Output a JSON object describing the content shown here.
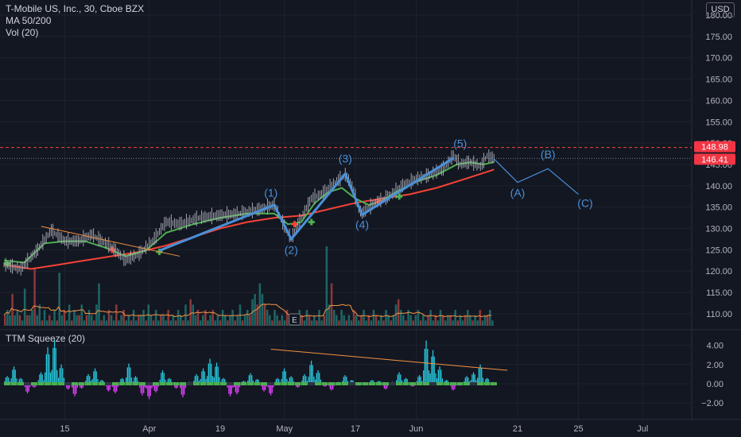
{
  "header": {
    "symbol_line": "T-Mobile US, Inc., 30, Cboe BZX",
    "ma_label": "MA 50/200",
    "vol_label": "Vol (20)",
    "currency": "USD"
  },
  "squeeze_pane": {
    "title": "TTM Squeeze (20)"
  },
  "colors": {
    "background": "#131722",
    "grid": "#1e222d",
    "price_bars": "#b2b5be",
    "ma50": "#4caf50",
    "ma200": "#f44336",
    "wave_line": "#4a90d9",
    "trendline": "#f59342",
    "squeeze_up": "#26c6da",
    "squeeze_down": "#e040fb",
    "volume_up": "#26a69a",
    "volume_down": "#ef5350",
    "price_badge": "#f23645"
  },
  "chart_data": [
    {
      "type": "line",
      "title": "T-Mobile US, Inc., 30, Cboe BZX",
      "x_ticks": [
        "15",
        "Apr",
        "19",
        "May",
        "17",
        "Jun",
        "21",
        "25",
        "Jul"
      ],
      "y_ticks": [
        "110.00",
        "115.00",
        "120.00",
        "125.00",
        "130.00",
        "135.00",
        "140.00",
        "145.00",
        "150.00",
        "155.00",
        "160.00",
        "165.00",
        "170.00",
        "175.00",
        "180.00"
      ],
      "ylim": [
        105.7,
        181.5
      ],
      "price_path": [
        {
          "x": 0.0,
          "y": 121.5
        },
        {
          "x": 2.5,
          "y": 120.5
        },
        {
          "x": 5.0,
          "y": 125.0
        },
        {
          "x": 7.0,
          "y": 129.5
        },
        {
          "x": 9.0,
          "y": 127.0
        },
        {
          "x": 11.0,
          "y": 127.0
        },
        {
          "x": 13.0,
          "y": 128.5
        },
        {
          "x": 16.0,
          "y": 125.5
        },
        {
          "x": 18.0,
          "y": 122.5
        },
        {
          "x": 20.0,
          "y": 124.0
        },
        {
          "x": 22.0,
          "y": 127.0
        },
        {
          "x": 24.0,
          "y": 131.5
        },
        {
          "x": 26.0,
          "y": 131.0
        },
        {
          "x": 29.0,
          "y": 132.5
        },
        {
          "x": 32.0,
          "y": 133.0
        },
        {
          "x": 35.0,
          "y": 133.5
        },
        {
          "x": 38.0,
          "y": 134.5
        },
        {
          "x": 40.0,
          "y": 135.5
        },
        {
          "x": 41.5,
          "y": 130.5
        },
        {
          "x": 42.5,
          "y": 127.5
        },
        {
          "x": 44.0,
          "y": 132.5
        },
        {
          "x": 45.5,
          "y": 137.0
        },
        {
          "x": 47.0,
          "y": 138.0
        },
        {
          "x": 48.5,
          "y": 140.0
        },
        {
          "x": 50.5,
          "y": 142.5
        },
        {
          "x": 51.5,
          "y": 140.0
        },
        {
          "x": 52.5,
          "y": 134.5
        },
        {
          "x": 53.0,
          "y": 133.5
        },
        {
          "x": 55.0,
          "y": 136.0
        },
        {
          "x": 57.0,
          "y": 137.5
        },
        {
          "x": 59.0,
          "y": 140.0
        },
        {
          "x": 61.0,
          "y": 141.5
        },
        {
          "x": 63.0,
          "y": 142.5
        },
        {
          "x": 65.0,
          "y": 144.0
        },
        {
          "x": 66.5,
          "y": 147.0
        },
        {
          "x": 67.5,
          "y": 145.0
        },
        {
          "x": 69.0,
          "y": 145.5
        },
        {
          "x": 70.5,
          "y": 144.5
        },
        {
          "x": 71.5,
          "y": 147.0
        },
        {
          "x": 72.5,
          "y": 146.4
        }
      ],
      "series": [
        {
          "name": "MA 50",
          "points": [
            {
              "x": 0.0,
              "y": 122.5
            },
            {
              "x": 3.0,
              "y": 122.0
            },
            {
              "x": 6.0,
              "y": 126.5
            },
            {
              "x": 9.0,
              "y": 127.0
            },
            {
              "x": 12.0,
              "y": 127.0
            },
            {
              "x": 15.0,
              "y": 125.5
            },
            {
              "x": 18.0,
              "y": 123.5
            },
            {
              "x": 21.0,
              "y": 124.8
            },
            {
              "x": 24.0,
              "y": 129.0
            },
            {
              "x": 28.0,
              "y": 131.0
            },
            {
              "x": 32.0,
              "y": 132.5
            },
            {
              "x": 36.0,
              "y": 133.5
            },
            {
              "x": 40.0,
              "y": 133.5
            },
            {
              "x": 42.0,
              "y": 131.0
            },
            {
              "x": 44.0,
              "y": 131.5
            },
            {
              "x": 46.0,
              "y": 136.0
            },
            {
              "x": 48.0,
              "y": 138.5
            },
            {
              "x": 50.0,
              "y": 139.5
            },
            {
              "x": 52.0,
              "y": 137.0
            },
            {
              "x": 54.0,
              "y": 135.5
            },
            {
              "x": 56.0,
              "y": 136.5
            },
            {
              "x": 58.0,
              "y": 138.5
            },
            {
              "x": 61.0,
              "y": 141.0
            },
            {
              "x": 64.0,
              "y": 142.5
            },
            {
              "x": 67.0,
              "y": 145.0
            },
            {
              "x": 69.0,
              "y": 145.5
            },
            {
              "x": 71.0,
              "y": 145.0
            },
            {
              "x": 72.5,
              "y": 145.6
            }
          ]
        },
        {
          "name": "MA 200",
          "points": [
            {
              "x": 0.0,
              "y": 121.5
            },
            {
              "x": 4.0,
              "y": 120.5
            },
            {
              "x": 8.0,
              "y": 121.5
            },
            {
              "x": 12.0,
              "y": 122.5
            },
            {
              "x": 16.0,
              "y": 123.5
            },
            {
              "x": 20.0,
              "y": 124.5
            },
            {
              "x": 24.0,
              "y": 126.0
            },
            {
              "x": 28.0,
              "y": 128.0
            },
            {
              "x": 32.0,
              "y": 130.0
            },
            {
              "x": 36.0,
              "y": 131.5
            },
            {
              "x": 40.0,
              "y": 132.5
            },
            {
              "x": 44.0,
              "y": 133.0
            },
            {
              "x": 48.0,
              "y": 134.5
            },
            {
              "x": 52.0,
              "y": 136.0
            },
            {
              "x": 56.0,
              "y": 137.0
            },
            {
              "x": 60.0,
              "y": 138.0
            },
            {
              "x": 64.0,
              "y": 139.5
            },
            {
              "x": 68.0,
              "y": 141.5
            },
            {
              "x": 72.5,
              "y": 143.8
            }
          ]
        }
      ],
      "ma_cross_markers": [
        {
          "x": 0.5,
          "y": 121.8
        },
        {
          "x": 16.0,
          "y": 125.0
        },
        {
          "x": 23.0,
          "y": 124.5
        },
        {
          "x": 43.0,
          "y": 131.0
        },
        {
          "x": 45.5,
          "y": 131.5
        },
        {
          "x": 55.5,
          "y": 136.2
        },
        {
          "x": 58.5,
          "y": 137.5
        }
      ],
      "elliott_wave_lines": [
        {
          "x": 23.0,
          "y": 124.8
        },
        {
          "x": 40.0,
          "y": 135.5
        },
        {
          "x": 42.5,
          "y": 127.5
        },
        {
          "x": 50.5,
          "y": 142.8
        },
        {
          "x": 53.0,
          "y": 133.2
        },
        {
          "x": 66.5,
          "y": 146.5
        }
      ],
      "projection_line": [
        {
          "x": 72.5,
          "y": 146.3
        },
        {
          "x": 76.0,
          "y": 140.8
        },
        {
          "x": 80.5,
          "y": 144.0
        },
        {
          "x": 85.0,
          "y": 138.0
        }
      ],
      "trendline": [
        {
          "x": 5.5,
          "y": 130.5
        },
        {
          "x": 26.0,
          "y": 123.5
        }
      ],
      "wave_labels": [
        {
          "text": "(1)",
          "x": 39.5,
          "y": 137.5
        },
        {
          "text": "(2)",
          "x": 42.5,
          "y": 124.0
        },
        {
          "text": "(3)",
          "x": 50.5,
          "y": 145.5
        },
        {
          "text": "(4)",
          "x": 53.0,
          "y": 130.0
        },
        {
          "text": "(5)",
          "x": 67.5,
          "y": 149.0
        },
        {
          "text": "(A)",
          "x": 76.0,
          "y": 137.5
        },
        {
          "text": "(B)",
          "x": 80.5,
          "y": 146.5
        },
        {
          "text": "(C)",
          "x": 86.0,
          "y": 135.0
        }
      ],
      "last_price": 146.41,
      "level_line": 148.98,
      "price_labels": [
        "148.98",
        "146.41"
      ],
      "event_marker": "E",
      "volume": {
        "type": "bar",
        "unit": "relative",
        "values": [
          2,
          3,
          2,
          6,
          2,
          3,
          2,
          1,
          7,
          2,
          2,
          3,
          11,
          2,
          4,
          1,
          3,
          1,
          2,
          1,
          3,
          1,
          10,
          2,
          3,
          1,
          4,
          1,
          3,
          2,
          2,
          4,
          1,
          2,
          3,
          2,
          1,
          4,
          8,
          1,
          2,
          1,
          3,
          2,
          1,
          4,
          1,
          2,
          3,
          1,
          2,
          1,
          3,
          1,
          2,
          2,
          3,
          1,
          4,
          2,
          1,
          3,
          1,
          2,
          2,
          1,
          3,
          1,
          2,
          1,
          3,
          2,
          1,
          4,
          1,
          5,
          4,
          2,
          3,
          1,
          2,
          3,
          1,
          2,
          3,
          1,
          2,
          1,
          3,
          2,
          1,
          2,
          3,
          1,
          2,
          4,
          1,
          2,
          3,
          2,
          5,
          6,
          4,
          8,
          6,
          4,
          3,
          2,
          1,
          3,
          2,
          1,
          2,
          1,
          3,
          1,
          2,
          2,
          1,
          3,
          2,
          1,
          3,
          2,
          1,
          2,
          1,
          3,
          1,
          2,
          15,
          4,
          8,
          3,
          2,
          1,
          3,
          2,
          1,
          2,
          1,
          3,
          2,
          1,
          2,
          3,
          1,
          2,
          1,
          3,
          2,
          1,
          2,
          1,
          3,
          2,
          1,
          2,
          4,
          5,
          3,
          2,
          1,
          3,
          2,
          1,
          2,
          3,
          1,
          2,
          1,
          2,
          3,
          1,
          2,
          1,
          3,
          2,
          1,
          2,
          2,
          1,
          3,
          1,
          2,
          1,
          2,
          3,
          2,
          1,
          2,
          1,
          3,
          1,
          2,
          2,
          3,
          1
        ]
      }
    },
    {
      "type": "bar",
      "title": "TTM Squeeze (20)",
      "y_ticks": [
        "4.00",
        "2.00",
        "0.00",
        "−2.00"
      ],
      "ylim": [
        -3.4,
        4.9
      ],
      "x": [
        1,
        2,
        3,
        4,
        5,
        6,
        7,
        8,
        9,
        10,
        11,
        12,
        13,
        14,
        15,
        16,
        17,
        18,
        19,
        20,
        21,
        22,
        23,
        24,
        25,
        26,
        27,
        28,
        29,
        30,
        31,
        32,
        33,
        34,
        35,
        36,
        37,
        38,
        39,
        40,
        41,
        42,
        43,
        44,
        45,
        46,
        47,
        48,
        49,
        50,
        51,
        52,
        53,
        54,
        55,
        56,
        57,
        58,
        59,
        60,
        61,
        62,
        63,
        64,
        65,
        66,
        67,
        68,
        69,
        70,
        71,
        72
      ],
      "values": [
        0.8,
        1.8,
        0.6,
        -1.0,
        -0.4,
        1.2,
        3.8,
        4.6,
        2.0,
        -0.6,
        -1.3,
        -0.5,
        1.0,
        1.6,
        0.4,
        -0.8,
        -1.0,
        0.6,
        2.1,
        0.8,
        -1.2,
        -1.6,
        -0.9,
        1.4,
        0.6,
        -0.5,
        -1.4,
        0.2,
        1.0,
        1.6,
        2.6,
        2.2,
        0.6,
        -1.3,
        -1.1,
        0.3,
        1.1,
        0.5,
        -0.8,
        -1.2,
        0.6,
        1.6,
        0.8,
        -0.4,
        1.0,
        2.4,
        1.4,
        -0.3,
        -0.7,
        0.2,
        0.9,
        0.4,
        -0.2,
        0.1,
        0.4,
        0.3,
        -0.6,
        0.2,
        1.2,
        0.6,
        -0.3,
        0.9,
        4.5,
        3.5,
        1.8,
        0.4,
        -0.7,
        -0.2,
        0.8,
        1.2,
        2.0,
        0.6
      ],
      "trendline": [
        {
          "x": 39.5,
          "y": 3.6
        },
        {
          "x": 72.5,
          "y": 1.5
        }
      ]
    }
  ]
}
